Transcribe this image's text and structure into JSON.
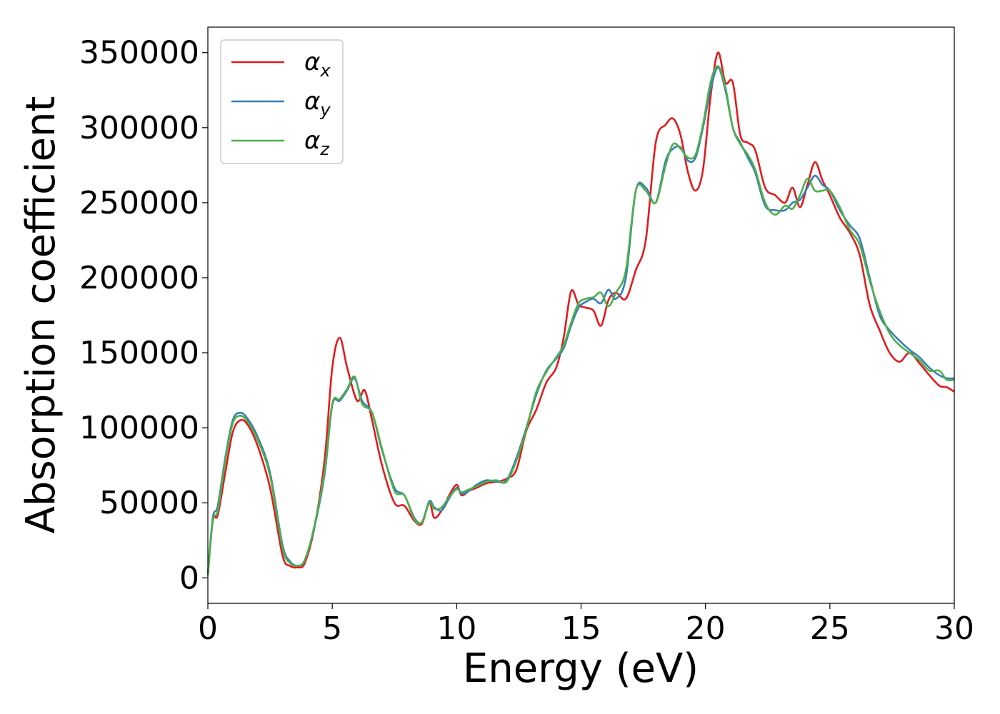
{
  "chart_data": {
    "type": "line",
    "xlabel": "Energy (eV)",
    "ylabel": "Absorption coefficient",
    "xlim": [
      0,
      30
    ],
    "ylim": [
      -17000,
      367000
    ],
    "xticks": [
      0,
      5,
      10,
      15,
      20,
      25,
      30
    ],
    "xtick_labels": [
      "0",
      "5",
      "10",
      "15",
      "20",
      "25",
      "30"
    ],
    "yticks": [
      0,
      50000,
      100000,
      150000,
      200000,
      250000,
      300000,
      350000
    ],
    "ytick_labels": [
      "0",
      "50000",
      "100000",
      "150000",
      "200000",
      "250000",
      "300000",
      "350000"
    ],
    "grid": false,
    "legend_position": "top-left",
    "series": [
      {
        "name": "α",
        "subscript": "x",
        "color": "#e41a1c",
        "x": [
          0.0,
          0.2,
          0.4,
          0.7,
          1.0,
          1.3,
          1.6,
          2.0,
          2.5,
          3.0,
          3.3,
          3.6,
          3.9,
          4.3,
          4.7,
          5.0,
          5.3,
          5.6,
          6.0,
          6.3,
          6.6,
          7.0,
          7.5,
          7.9,
          8.3,
          8.6,
          8.9,
          9.1,
          9.4,
          9.7,
          10.0,
          10.2,
          10.5,
          10.8,
          11.2,
          11.6,
          12.0,
          12.4,
          12.8,
          13.2,
          13.6,
          14.0,
          14.3,
          14.6,
          14.9,
          15.2,
          15.5,
          15.8,
          16.1,
          16.4,
          16.8,
          17.2,
          17.6,
          18.0,
          18.4,
          18.7,
          19.0,
          19.3,
          19.6,
          19.9,
          20.2,
          20.5,
          20.8,
          21.1,
          21.4,
          21.7,
          22.0,
          22.4,
          22.8,
          23.2,
          23.5,
          23.8,
          24.1,
          24.4,
          24.7,
          25.0,
          25.4,
          25.8,
          26.2,
          26.6,
          27.0,
          27.4,
          27.8,
          28.2,
          28.6,
          29.0,
          29.4,
          29.7,
          30.0
        ],
        "y": [
          3000,
          38000,
          42000,
          70000,
          97000,
          105000,
          102000,
          88000,
          60000,
          15000,
          8000,
          7000,
          10000,
          35000,
          80000,
          140000,
          160000,
          140000,
          118000,
          125000,
          105000,
          75000,
          50000,
          48000,
          38000,
          36000,
          50000,
          40000,
          45000,
          55000,
          62000,
          55000,
          58000,
          60000,
          63000,
          64000,
          66000,
          72000,
          98000,
          112000,
          130000,
          140000,
          160000,
          191000,
          182000,
          180000,
          178000,
          168000,
          185000,
          190000,
          186000,
          205000,
          225000,
          290000,
          302000,
          306000,
          295000,
          270000,
          258000,
          272000,
          320000,
          350000,
          330000,
          330000,
          295000,
          290000,
          285000,
          260000,
          255000,
          250000,
          260000,
          247000,
          262000,
          277000,
          265000,
          255000,
          240000,
          230000,
          215000,
          182000,
          165000,
          150000,
          144000,
          150000,
          143000,
          135000,
          128000,
          127000,
          124000
        ]
      },
      {
        "name": "α",
        "subscript": "y",
        "color": "#377eb8",
        "x": [
          0.0,
          0.2,
          0.4,
          0.7,
          1.0,
          1.3,
          1.6,
          2.0,
          2.5,
          3.0,
          3.3,
          3.6,
          3.9,
          4.3,
          4.7,
          5.0,
          5.3,
          5.6,
          5.9,
          6.2,
          6.6,
          7.0,
          7.5,
          7.9,
          8.3,
          8.6,
          8.9,
          9.1,
          9.4,
          9.7,
          10.0,
          10.2,
          10.5,
          10.8,
          11.2,
          11.6,
          12.0,
          12.4,
          12.8,
          13.2,
          13.6,
          14.0,
          14.3,
          14.6,
          14.9,
          15.2,
          15.5,
          15.8,
          16.1,
          16.4,
          16.8,
          17.2,
          17.6,
          18.0,
          18.4,
          18.7,
          19.0,
          19.3,
          19.6,
          19.9,
          20.2,
          20.5,
          20.8,
          21.1,
          21.4,
          21.7,
          22.0,
          22.4,
          22.8,
          23.2,
          23.5,
          23.8,
          24.1,
          24.4,
          24.7,
          25.0,
          25.4,
          25.8,
          26.2,
          26.6,
          27.0,
          27.4,
          27.8,
          28.2,
          28.6,
          29.0,
          29.4,
          29.7,
          30.0
        ],
        "y": [
          2000,
          40000,
          48000,
          80000,
          105000,
          110000,
          106000,
          94000,
          70000,
          22000,
          11000,
          8000,
          12000,
          35000,
          70000,
          115000,
          118000,
          125000,
          133000,
          118000,
          110000,
          85000,
          60000,
          55000,
          40000,
          37000,
          51000,
          47000,
          45000,
          53000,
          60000,
          56000,
          58000,
          62000,
          65000,
          64000,
          65000,
          80000,
          100000,
          122000,
          138000,
          146000,
          153000,
          168000,
          180000,
          184000,
          186000,
          183000,
          192000,
          186000,
          200000,
          258000,
          260000,
          250000,
          278000,
          286000,
          287000,
          278000,
          280000,
          300000,
          325000,
          340000,
          325000,
          300000,
          290000,
          280000,
          270000,
          248000,
          245000,
          245000,
          250000,
          252000,
          260000,
          268000,
          262000,
          258000,
          245000,
          235000,
          226000,
          200000,
          175000,
          165000,
          158000,
          152000,
          147000,
          140000,
          135000,
          133000,
          133000
        ]
      },
      {
        "name": "α",
        "subscript": "z",
        "color": "#4daf4a",
        "x": [
          0.0,
          0.2,
          0.4,
          0.7,
          1.0,
          1.3,
          1.6,
          2.0,
          2.5,
          3.0,
          3.3,
          3.6,
          3.9,
          4.3,
          4.7,
          5.0,
          5.3,
          5.6,
          5.9,
          6.2,
          6.6,
          7.0,
          7.5,
          7.9,
          8.3,
          8.6,
          8.9,
          9.1,
          9.4,
          9.7,
          10.0,
          10.2,
          10.5,
          10.8,
          11.2,
          11.6,
          12.0,
          12.4,
          12.8,
          13.2,
          13.6,
          14.0,
          14.3,
          14.6,
          14.9,
          15.2,
          15.5,
          15.8,
          16.1,
          16.4,
          16.8,
          17.2,
          17.6,
          18.0,
          18.4,
          18.7,
          19.0,
          19.3,
          19.6,
          19.9,
          20.2,
          20.5,
          20.8,
          21.1,
          21.4,
          21.7,
          22.0,
          22.4,
          22.8,
          23.2,
          23.5,
          23.8,
          24.1,
          24.4,
          24.7,
          25.0,
          25.4,
          25.8,
          26.2,
          26.6,
          27.0,
          27.4,
          27.8,
          28.2,
          28.6,
          29.0,
          29.4,
          29.7,
          30.0
        ],
        "y": [
          2000,
          38000,
          45000,
          78000,
          103000,
          108000,
          104000,
          92000,
          68000,
          20000,
          10000,
          8000,
          12000,
          36000,
          72000,
          116000,
          119000,
          126000,
          134000,
          116000,
          110000,
          86000,
          58000,
          55000,
          39000,
          37000,
          50000,
          46000,
          47000,
          54000,
          59000,
          57000,
          59000,
          61000,
          64000,
          65000,
          64000,
          78000,
          99000,
          124000,
          137000,
          147000,
          155000,
          170000,
          183000,
          186000,
          187000,
          190000,
          181000,
          190000,
          205000,
          258000,
          258000,
          250000,
          275000,
          289000,
          286000,
          280000,
          282000,
          302000,
          330000,
          341000,
          327000,
          300000,
          289000,
          282000,
          272000,
          250000,
          242000,
          248000,
          246000,
          255000,
          266000,
          258000,
          258000,
          258000,
          247000,
          232000,
          222000,
          198000,
          178000,
          163000,
          155000,
          150000,
          145000,
          138000,
          138000,
          132000,
          132000
        ]
      }
    ]
  }
}
